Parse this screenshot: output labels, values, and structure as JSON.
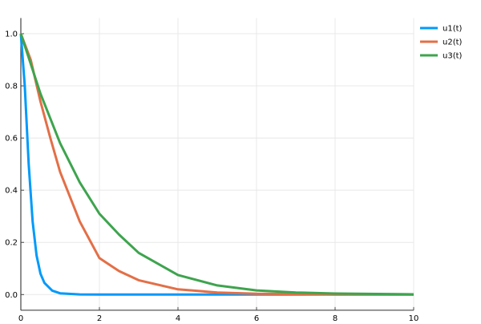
{
  "chart_data": {
    "type": "line",
    "title": "",
    "xlabel": "",
    "ylabel": "",
    "xlim": [
      0,
      10
    ],
    "ylim": [
      -0.06,
      1.06
    ],
    "xticks": [
      "0",
      "2",
      "4",
      "6",
      "8",
      "10"
    ],
    "yticks": [
      "0.0",
      "0.2",
      "0.4",
      "0.6",
      "0.8",
      "1.0"
    ],
    "grid": true,
    "legend": "top-right",
    "series": [
      {
        "name": "u1(t)",
        "color": "#009AFA",
        "x": [
          0,
          0.1,
          0.2,
          0.3,
          0.4,
          0.5,
          0.6,
          0.8,
          1,
          1.5,
          2,
          10
        ],
        "y": [
          1,
          0.8,
          0.5,
          0.28,
          0.15,
          0.08,
          0.045,
          0.015,
          0.005,
          0.0005,
          0,
          0
        ]
      },
      {
        "name": "u2(t)",
        "color": "#E36F47",
        "x": [
          0,
          0.25,
          0.5,
          0.75,
          1,
          1.5,
          2,
          2.5,
          3,
          4,
          5,
          6,
          8,
          10
        ],
        "y": [
          1,
          0.9,
          0.74,
          0.6,
          0.47,
          0.28,
          0.14,
          0.09,
          0.055,
          0.02,
          0.008,
          0.003,
          0.0005,
          0
        ]
      },
      {
        "name": "u3(t)",
        "color": "#3EA44E",
        "x": [
          0,
          0.5,
          1,
          1.5,
          2,
          2.5,
          3,
          4,
          5,
          6,
          7,
          8,
          10
        ],
        "y": [
          1,
          0.77,
          0.58,
          0.43,
          0.31,
          0.23,
          0.16,
          0.075,
          0.035,
          0.016,
          0.008,
          0.004,
          0.001
        ]
      }
    ]
  }
}
